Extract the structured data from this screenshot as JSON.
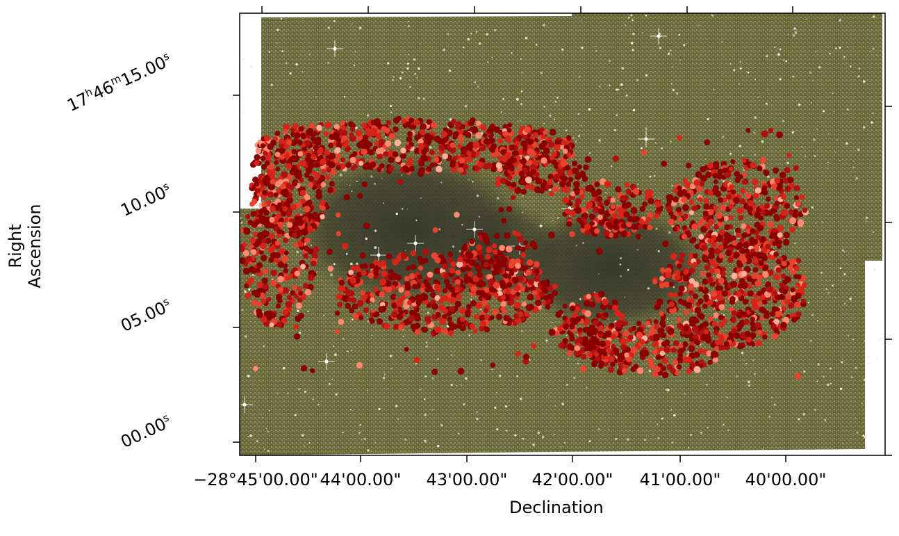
{
  "axes": {
    "xlabel": "Declination",
    "ylabel": "Right Ascension",
    "x_ticks": [
      "−28°45'00.00\"",
      "44'00.00\"",
      "43'00.00\"",
      "42'00.00\"",
      "41'00.00\"",
      "40'00.00\""
    ],
    "y_ticks": [
      {
        "base": "17",
        "sup1": "h",
        "mid": "46",
        "sup2": "m",
        "tail": "15.00",
        "sup3": "s"
      },
      {
        "base": "",
        "sup1": "",
        "mid": "",
        "sup2": "",
        "tail": "10.00",
        "sup3": "s"
      },
      {
        "base": "",
        "sup1": "",
        "mid": "",
        "sup2": "",
        "tail": "05.00",
        "sup3": "s"
      },
      {
        "base": "",
        "sup1": "",
        "mid": "",
        "sup2": "",
        "tail": "00.00",
        "sup3": "s"
      }
    ]
  },
  "colors": {
    "background_field": "#6b6a3a",
    "dark_cloud": "#3b3d2c",
    "marker_dark": "#8b0000",
    "marker_mid": "#d62418",
    "marker_light": "#ff8a70"
  }
}
